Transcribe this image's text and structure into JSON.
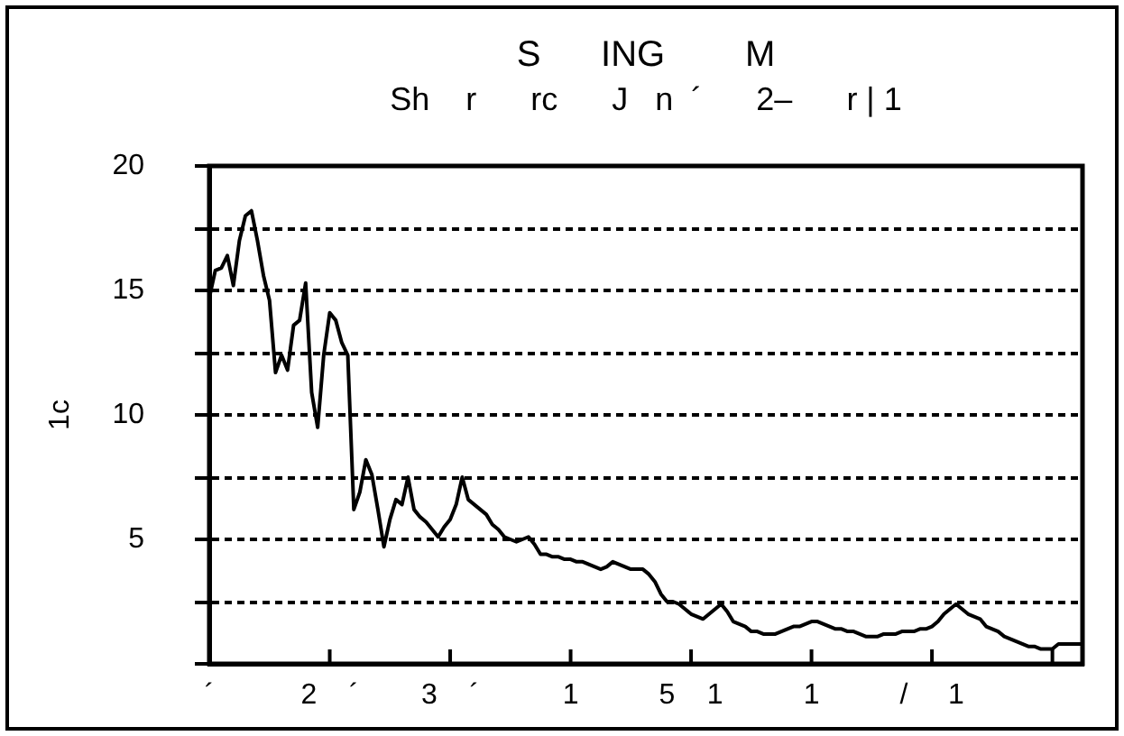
{
  "chart_data": {
    "type": "line",
    "title": "S      ING        M",
    "subtitle": "Sh    r      rc      J   n  ´      2–      r | 1",
    "ylabel": "1c",
    "categories": [
      "´",
      null,
      null,
      null,
      null,
      null,
      null,
      null,
      null,
      null,
      null,
      null,
      null,
      null,
      null,
      null,
      null,
      null,
      null,
      null,
      "2    ´",
      null,
      null,
      null,
      null,
      null,
      null,
      null,
      null,
      null,
      null,
      null,
      null,
      null,
      null,
      null,
      null,
      null,
      null,
      null,
      "3    ´",
      null,
      null,
      null,
      null,
      null,
      null,
      null,
      null,
      null,
      null,
      null,
      null,
      null,
      null,
      null,
      null,
      null,
      null,
      null,
      "1",
      null,
      null,
      null,
      null,
      null,
      null,
      null,
      null,
      null,
      null,
      null,
      null,
      null,
      null,
      null,
      null,
      null,
      null,
      null,
      "5    1",
      null,
      null,
      null,
      null,
      null,
      null,
      null,
      null,
      null,
      null,
      null,
      null,
      null,
      null,
      null,
      null,
      null,
      null,
      null,
      "1",
      null,
      null,
      null,
      null,
      null,
      null,
      null,
      null,
      null,
      null,
      null,
      null,
      null,
      null,
      null,
      null,
      null,
      null,
      null,
      "/     1",
      null,
      null,
      null,
      null,
      null,
      null,
      null,
      null,
      null,
      null,
      null,
      null,
      null,
      null,
      null,
      null,
      null,
      null,
      null,
      null,
      null,
      null,
      null,
      null,
      null
    ],
    "ylim": [
      0,
      20
    ],
    "yticks": [
      {
        "value": 0,
        "label": null
      },
      {
        "value": 2.5,
        "label": null
      },
      5,
      {
        "value": 7.5,
        "label": null
      },
      10,
      {
        "value": 12.5,
        "label": null
      },
      15,
      {
        "value": 17.5,
        "label": null
      },
      20
    ],
    "grid": "y",
    "series": [
      {
        "color": "#000000",
        "values": [
          14.7,
          15.8,
          15.9,
          16.4,
          15.2,
          17.0,
          18.0,
          18.2,
          17.0,
          15.6,
          14.6,
          11.7,
          12.4,
          11.8,
          13.6,
          13.8,
          15.3,
          10.9,
          9.5,
          12.4,
          14.1,
          13.8,
          12.9,
          12.4,
          6.2,
          6.9,
          8.2,
          7.6,
          6.2,
          4.7,
          5.8,
          6.6,
          6.4,
          7.5,
          6.2,
          5.9,
          5.7,
          5.4,
          5.1,
          5.5,
          5.8,
          6.4,
          7.5,
          6.6,
          6.4,
          6.2,
          6.0,
          5.6,
          5.4,
          5.1,
          5.0,
          4.9,
          5.0,
          5.1,
          4.8,
          4.4,
          4.4,
          4.3,
          4.3,
          4.2,
          4.2,
          4.1,
          4.1,
          4.0,
          3.9,
          3.8,
          3.9,
          4.1,
          4.0,
          3.9,
          3.8,
          3.8,
          3.8,
          3.6,
          3.3,
          2.8,
          2.5,
          2.5,
          2.4,
          2.2,
          2.0,
          1.9,
          1.8,
          2.0,
          2.2,
          2.4,
          2.1,
          1.7,
          1.6,
          1.5,
          1.3,
          1.3,
          1.2,
          1.2,
          1.2,
          1.3,
          1.4,
          1.5,
          1.5,
          1.6,
          1.7,
          1.7,
          1.6,
          1.5,
          1.4,
          1.4,
          1.3,
          1.3,
          1.2,
          1.1,
          1.1,
          1.1,
          1.2,
          1.2,
          1.2,
          1.3,
          1.3,
          1.3,
          1.4,
          1.4,
          1.5,
          1.7,
          2.0,
          2.2,
          2.4,
          2.2,
          2.0,
          1.9,
          1.8,
          1.5,
          1.4,
          1.3,
          1.1,
          1.0,
          0.9,
          0.8,
          0.7,
          0.7,
          0.6,
          0.6,
          0.6,
          0.8,
          0.8,
          0.8,
          0.8,
          0.8
        ]
      }
    ]
  }
}
